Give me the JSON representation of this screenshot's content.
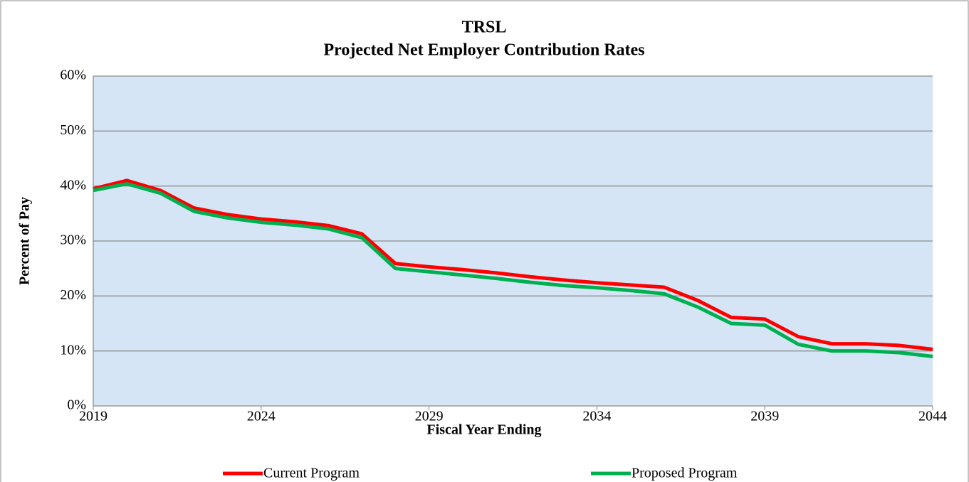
{
  "chart_data": {
    "type": "line",
    "title": "TRSL",
    "subtitle": "Projected Net Employer Contribution Rates",
    "x_label": "Fiscal Year Ending",
    "y_label": "Percent of Pay",
    "x": [
      2019,
      2020,
      2021,
      2022,
      2023,
      2024,
      2025,
      2026,
      2027,
      2028,
      2029,
      2030,
      2031,
      2032,
      2033,
      2034,
      2035,
      2036,
      2037,
      2038,
      2039,
      2040,
      2041,
      2042,
      2043,
      2044
    ],
    "series": [
      {
        "name": "Current Program",
        "color": "#ff0000",
        "values": [
          39.5,
          41,
          39.2,
          36,
          34.8,
          34,
          33.5,
          32.8,
          31.3,
          25.9,
          25.3,
          24.8,
          24.2,
          23.5,
          22.9,
          22.4,
          22,
          21.6,
          19.2,
          16.1,
          15.8,
          12.6,
          11.3,
          11.3,
          11,
          10.3
        ]
      },
      {
        "name": "Proposed Program",
        "color": "#00b050",
        "values": [
          39.2,
          40.4,
          38.7,
          35.4,
          34.2,
          33.4,
          32.9,
          32.2,
          30.6,
          25,
          24.4,
          23.8,
          23.2,
          22.5,
          21.9,
          21.5,
          21,
          20.4,
          18,
          15,
          14.7,
          11.2,
          10,
          10,
          9.7,
          9
        ]
      }
    ],
    "xlim": [
      2019,
      2044
    ],
    "xticks": [
      2019,
      2024,
      2029,
      2034,
      2039,
      2044
    ],
    "ylim": [
      0,
      60
    ],
    "yticks": [
      {
        "value": 0,
        "label": "0%"
      },
      {
        "value": 10,
        "label": "10%"
      },
      {
        "value": 20,
        "label": "20%"
      },
      {
        "value": 30,
        "label": "30%"
      },
      {
        "value": 40,
        "label": "40%"
      },
      {
        "value": 50,
        "label": "50%"
      },
      {
        "value": 60,
        "label": "60%"
      }
    ],
    "grid": true,
    "legend": "bottom"
  }
}
